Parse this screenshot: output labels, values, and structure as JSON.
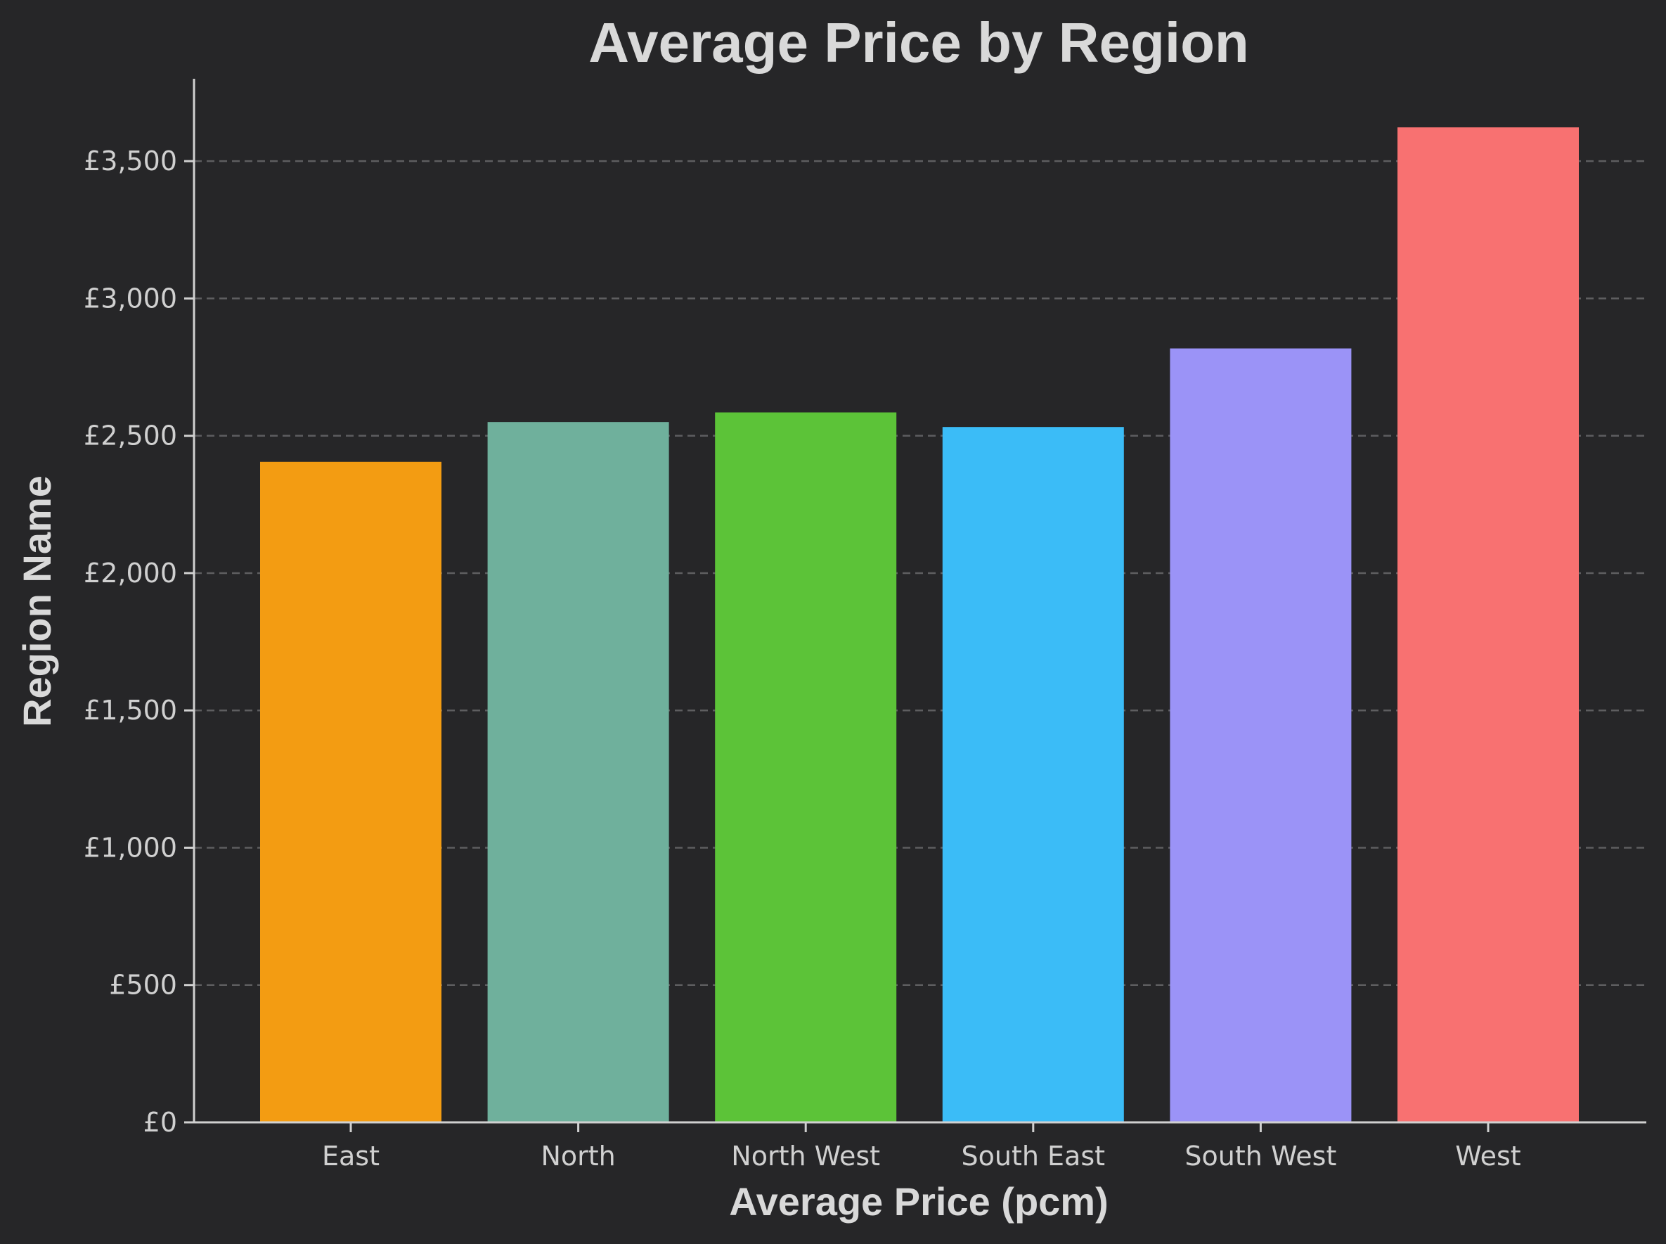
{
  "chart_data": {
    "type": "bar",
    "title": "Average Price by Region",
    "xlabel": "Average Price (pcm)",
    "ylabel": "Region Name",
    "categories": [
      "East",
      "North",
      "North West",
      "South East",
      "South West",
      "West"
    ],
    "values": [
      2405,
      2550,
      2585,
      2532,
      2818,
      3623
    ],
    "colors": [
      "#f39c12",
      "#6fb09c",
      "#5cc338",
      "#3bbcf7",
      "#9b93f7",
      "#f87171"
    ],
    "ylim": [
      0,
      3800
    ],
    "yticks": [
      0,
      500,
      1000,
      1500,
      2000,
      2500,
      3000,
      3500
    ],
    "ytick_labels": [
      "£0",
      "£500",
      "£1,000",
      "£1,500",
      "£2,000",
      "£2,500",
      "£3,000",
      "£3,500"
    ],
    "grid": "horizontal dashed",
    "background": "#262628"
  }
}
